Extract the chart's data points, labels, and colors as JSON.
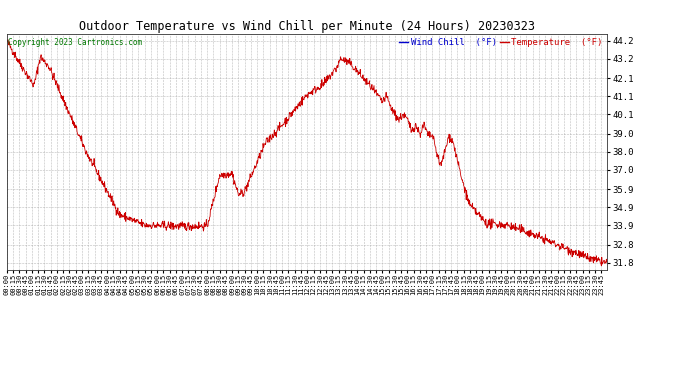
{
  "title": "Outdoor Temperature vs Wind Chill per Minute (24 Hours) 20230323",
  "copyright": "Copyright 2023 Cartronics.com",
  "legend_wind_chill": "Wind Chill  (°F)",
  "legend_temperature": "Temperature  (°F)",
  "line_color": "#cc0000",
  "wind_chill_color": "#0000cc",
  "temperature_color": "#cc0000",
  "bg_color": "#ffffff",
  "grid_color": "#aaaaaa",
  "ylim_min": 31.4,
  "ylim_max": 44.6,
  "yticks": [
    31.8,
    32.8,
    33.9,
    34.9,
    35.9,
    37.0,
    38.0,
    39.0,
    40.1,
    41.1,
    42.1,
    43.2,
    44.2
  ],
  "xtick_interval": 15,
  "total_minutes": 1440
}
